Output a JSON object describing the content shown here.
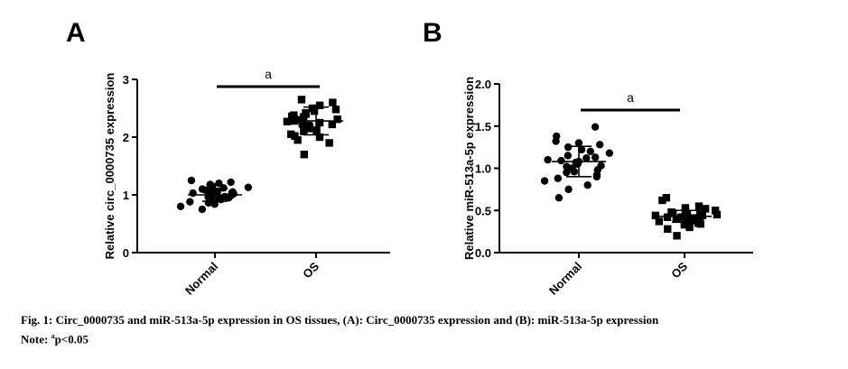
{
  "chart_data": [
    {
      "type": "scatter",
      "panel_label": "A",
      "ylabel": "Relative circ_0000735 expression",
      "categories": [
        "Normal",
        "OS"
      ],
      "ylim": [
        0,
        3
      ],
      "yticks": [
        "0",
        "1",
        "2",
        "3"
      ],
      "significance": "a",
      "series": [
        {
          "name": "Normal",
          "marker": "circle",
          "mean": 1.0,
          "sd": 0.11,
          "values": [
            1.22,
            1.25,
            1.2,
            1.18,
            1.15,
            1.12,
            1.1,
            1.08,
            1.06,
            1.05,
            1.04,
            1.03,
            1.02,
            1.01,
            1.0,
            0.99,
            0.98,
            0.97,
            0.96,
            0.95,
            0.94,
            0.92,
            0.9,
            0.88,
            0.86,
            0.84,
            0.8,
            0.75,
            1.07,
            1.13
          ]
        },
        {
          "name": "OS",
          "marker": "square",
          "mean": 2.28,
          "sd": 0.24,
          "values": [
            2.65,
            2.6,
            2.55,
            2.5,
            2.48,
            2.45,
            2.42,
            2.4,
            2.38,
            2.35,
            2.33,
            2.31,
            2.3,
            2.28,
            2.27,
            2.25,
            2.23,
            2.2,
            2.18,
            2.15,
            2.12,
            2.1,
            2.05,
            2.02,
            2.0,
            1.95,
            1.9,
            1.7,
            2.36,
            2.22
          ]
        }
      ]
    },
    {
      "type": "scatter",
      "panel_label": "B",
      "ylabel": "Relative miR-513a-5p expression",
      "categories": [
        "Normal",
        "OS"
      ],
      "ylim": [
        0,
        2
      ],
      "yticks": [
        "0.0",
        "0.5",
        "1.0",
        "1.5",
        "2.0"
      ],
      "significance": "a",
      "series": [
        {
          "name": "Normal",
          "marker": "circle",
          "mean": 1.08,
          "sd": 0.18,
          "values": [
            1.49,
            1.38,
            1.32,
            1.3,
            1.28,
            1.25,
            1.22,
            1.2,
            1.18,
            1.15,
            1.12,
            1.1,
            1.09,
            1.08,
            1.07,
            1.05,
            1.03,
            1.0,
            0.98,
            0.95,
            0.92,
            0.9,
            0.88,
            0.85,
            0.8,
            0.75,
            0.65,
            1.13,
            1.02,
            0.96
          ]
        },
        {
          "name": "OS",
          "marker": "square",
          "mean": 0.43,
          "sd": 0.07,
          "values": [
            0.65,
            0.62,
            0.55,
            0.53,
            0.52,
            0.5,
            0.49,
            0.48,
            0.47,
            0.46,
            0.45,
            0.44,
            0.43,
            0.42,
            0.42,
            0.41,
            0.4,
            0.39,
            0.38,
            0.37,
            0.36,
            0.35,
            0.34,
            0.33,
            0.3,
            0.28,
            0.2,
            0.44,
            0.4,
            0.45
          ]
        }
      ]
    }
  ],
  "caption": {
    "line1": "Fig. 1: Circ_0000735 and miR-513a-5p expression in OS tissues, (A): Circ_0000735 expression and (B): miR-513a-5p expression",
    "note_prefix": "Note: ",
    "note_sup": "a",
    "note_rest": "p<0.05"
  }
}
